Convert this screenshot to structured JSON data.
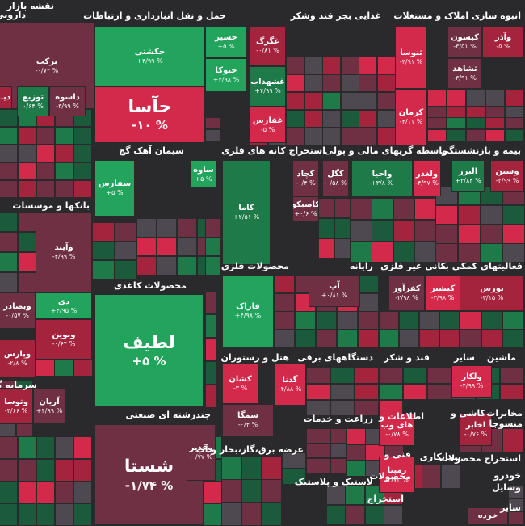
{
  "page": {
    "title": "نقشه بازار"
  },
  "colors": {
    "green_strong": "#22a45d",
    "green_mid": "#1f7a4a",
    "green_dark": "#1c5a3c",
    "red_strong": "#d3294a",
    "red_mid": "#a4243e",
    "red_dark": "#6e3042",
    "gray": "#4e4850",
    "background": "#2a2a2d"
  },
  "sectors": [
    {
      "name": "دارویی"
    },
    {
      "name": "حمل و نقل انبارداری و ارتباطات"
    },
    {
      "name": "غذایی بجز قند وشکر"
    },
    {
      "name": "انبوه سازی املاک و مستغلات"
    },
    {
      "name": "بانکها و موسسات"
    },
    {
      "name": "سیمان آهک گچ"
    },
    {
      "name": "استخراج کانه های فلزی"
    },
    {
      "name": "واسطه گریهای مالی و پولی"
    },
    {
      "name": "بیمه و بازنشستگی"
    },
    {
      "name": "محصولات فلزی"
    },
    {
      "name": "رایانه"
    },
    {
      "name": "کانی غیر فلزی"
    },
    {
      "name": "فعالیتهای کمکی به"
    },
    {
      "name": "محصولات کاغذی"
    },
    {
      "name": "هتل و رستوران"
    },
    {
      "name": "دستگاههای برقی"
    },
    {
      "name": "قند و شکر"
    },
    {
      "name": "سایر"
    },
    {
      "name": "ماشین"
    },
    {
      "name": "سرمایه گذا"
    },
    {
      "name": "چندرشته ای صنعتی"
    },
    {
      "name": "زراعت و خدمات"
    },
    {
      "name": "اطلاعات و"
    },
    {
      "name": "کاشی و"
    },
    {
      "name": "مخابرات"
    },
    {
      "name": "منسوجا"
    },
    {
      "name": "عرضه برق،گاز،بخار و آب"
    },
    {
      "name": "لاستیک و پلاستیک"
    },
    {
      "name": "فنی و"
    },
    {
      "name": "محصولات"
    },
    {
      "name": "پیمانکاری"
    },
    {
      "name": "استخراج"
    },
    {
      "name": "استخراج محصولات"
    },
    {
      "name": "خودرو"
    },
    {
      "name": "وسایل"
    },
    {
      "name": "سایر"
    }
  ],
  "tiles": [
    {
      "name": "برکت",
      "change": "-۰/۷۳ %"
    },
    {
      "name": "دیـ",
      "change": ""
    },
    {
      "name": "توزیع",
      "change": "۰/۶۴ %"
    },
    {
      "name": "داسوه",
      "change": "-۳/۹۹ %"
    },
    {
      "name": "حکشتی",
      "change": "+۴/۹۹ %"
    },
    {
      "name": "حسیر",
      "change": "+۵ %"
    },
    {
      "name": "حتوکا",
      "change": "+۴/۹۸ %"
    },
    {
      "name": "حآسا",
      "change": "-۱۰ %"
    },
    {
      "name": "غگرگ",
      "change": "-۰/۸۱ %"
    },
    {
      "name": "غشهداب",
      "change": "+۴/۹۹ %"
    },
    {
      "name": "غفارس",
      "change": "-۵ %"
    },
    {
      "name": "ثنوسا",
      "change": "-۴/۹۱ %"
    },
    {
      "name": "کیسون",
      "change": "-۳/۵۱ %"
    },
    {
      "name": "وآذر",
      "change": "-۵ %"
    },
    {
      "name": "ثشاهد",
      "change": "-۳/۹۱ %"
    },
    {
      "name": "کرمان",
      "change": "-۴/۱۱ %"
    },
    {
      "name": "سفارس",
      "change": "+۵ %"
    },
    {
      "name": "ساوه",
      "change": "+۵ %"
    },
    {
      "name": "کاما",
      "change": "+۲/۵۱ %"
    },
    {
      "name": "کچاد",
      "change": "-۰/۴ %"
    },
    {
      "name": "کگل",
      "change": "-۰/۵۸ %"
    },
    {
      "name": "کاصیکو",
      "change": "+۰/۶ %"
    },
    {
      "name": "واحیا",
      "change": "+۳/۸ %"
    },
    {
      "name": "ولغدر",
      "change": "-۴/۹۷ %"
    },
    {
      "name": "البرز",
      "change": "+۳/۸۴ %"
    },
    {
      "name": "وسین",
      "change": "-۲/۹۹ %"
    },
    {
      "name": "وآیند",
      "change": "-۴/۹۹ %"
    },
    {
      "name": "وبصادر",
      "change": "-۰/۵۷ %"
    },
    {
      "name": "دی",
      "change": "+۴/۹۵ %"
    },
    {
      "name": "ونوین",
      "change": "-۰/۶۴ %"
    },
    {
      "name": "وپارس",
      "change": "-۲/۸ %"
    },
    {
      "name": "لطیف",
      "change": "+۵ %"
    },
    {
      "name": "فاراک",
      "change": "+۴/۹۸ %"
    },
    {
      "name": "آپ",
      "change": "+۰/۸۱ %"
    },
    {
      "name": "کفرآور",
      "change": "-۲/۹۸ %"
    },
    {
      "name": "کیشیر",
      "change": "-۳/۹۸ %"
    },
    {
      "name": "بورس",
      "change": "-۳/۱۵ %"
    },
    {
      "name": "وتوسا",
      "change": "-۴/۶۶ %"
    },
    {
      "name": "آریان",
      "change": "+۴/۹۹ %"
    },
    {
      "name": "کشان",
      "change": "-۳ %"
    },
    {
      "name": "گدنا",
      "change": "-۴/۸۸ %"
    },
    {
      "name": "سمگا",
      "change": "-۰/۴ %"
    },
    {
      "name": "ولکار",
      "change": "-۴/۹۹ %"
    },
    {
      "name": "شستا",
      "change": "-۱/۷۴ %"
    },
    {
      "name": "وغدیر",
      "change": "-۰/۷۷ %"
    },
    {
      "name": "های وب",
      "change": "-۰/۷۸ %"
    },
    {
      "name": "اخابر",
      "change": "-۰/۷۶ %"
    },
    {
      "name": "رمپنا",
      "change": "-۴/۷۳ %"
    },
    {
      "name": "خرده",
      "change": ""
    }
  ]
}
